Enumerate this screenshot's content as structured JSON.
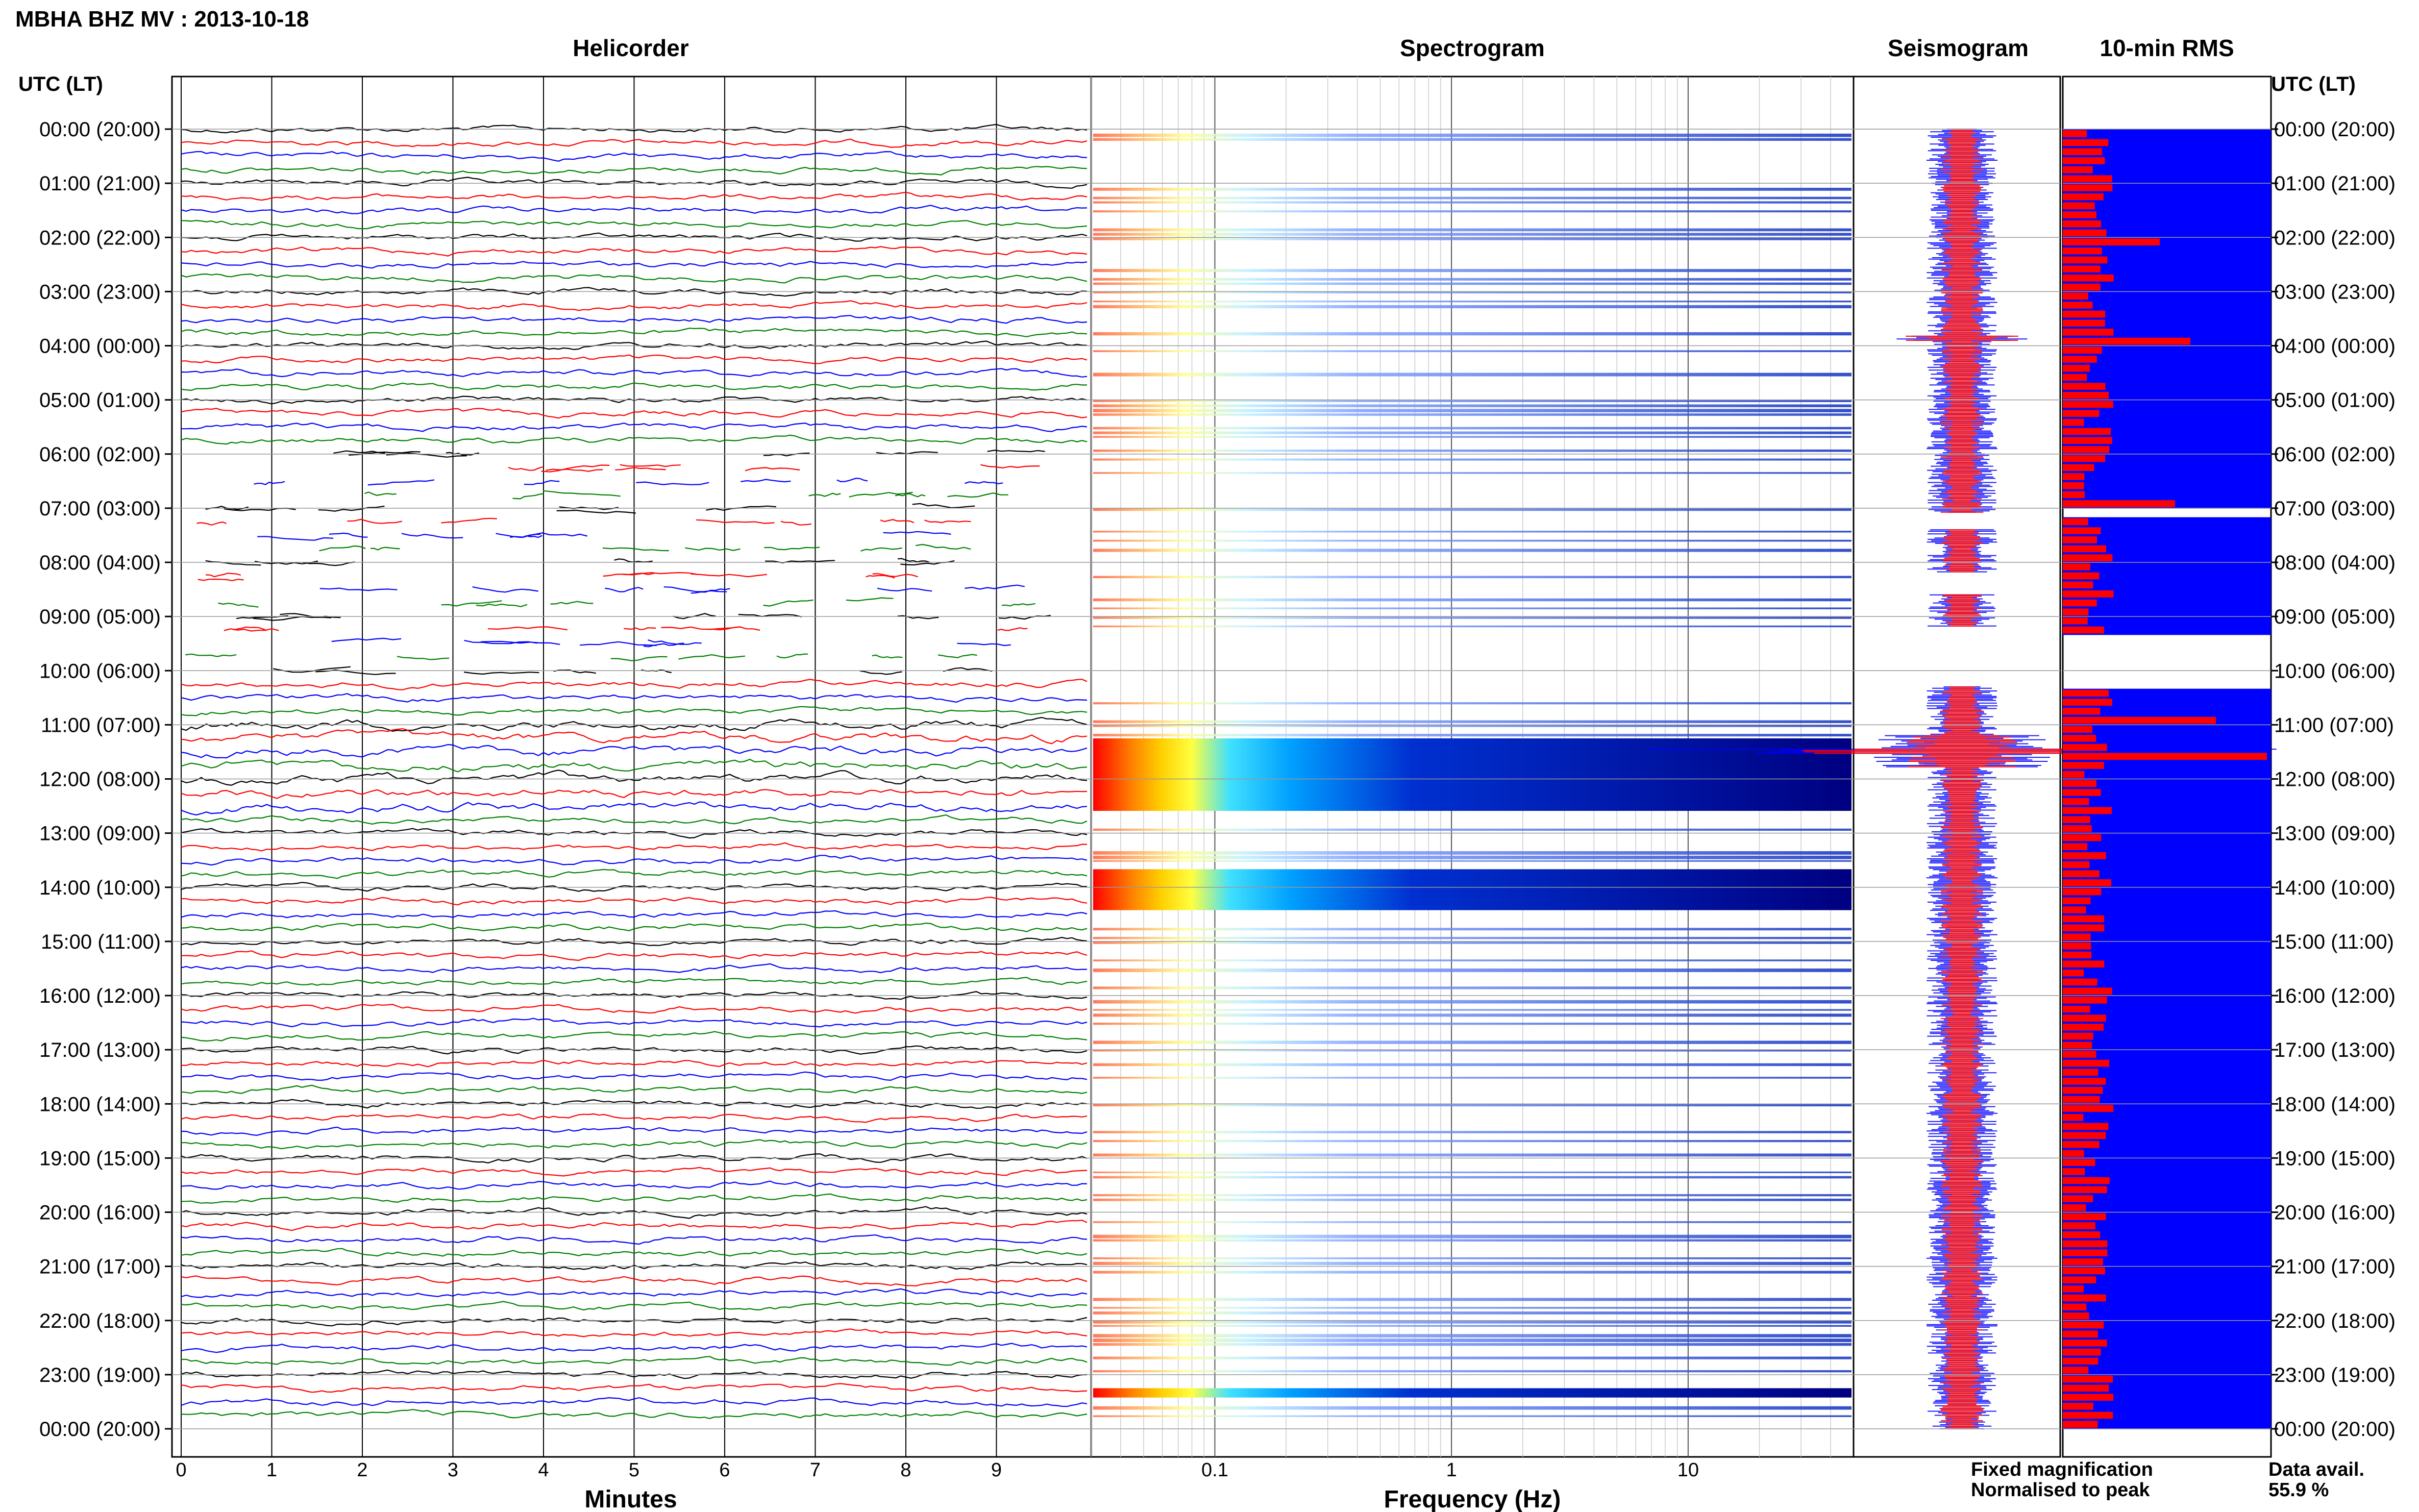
{
  "header": {
    "title": "MBHA BHZ MV : 2013-10-18",
    "axis_time_label": "UTC (LT)"
  },
  "panels": {
    "helicorder": "Helicorder",
    "spectrogram": "Spectrogram",
    "seismogram": "Seismogram",
    "rms": "10-min RMS"
  },
  "legend": {
    "fixed": "Fixed magnification",
    "normalised": "Normalised to peak",
    "fixed_color": "#0000ff",
    "normalised_color": "#ff0000"
  },
  "availability": {
    "label": "Data avail.",
    "value": "55.9 %"
  },
  "chart_data": {
    "type": "seismic-summary",
    "time_ticks": [
      "00:00 (20:00)",
      "01:00 (21:00)",
      "02:00 (22:00)",
      "03:00 (23:00)",
      "04:00 (00:00)",
      "05:00 (01:00)",
      "06:00 (02:00)",
      "07:00 (03:00)",
      "08:00 (04:00)",
      "09:00 (05:00)",
      "10:00 (06:00)",
      "11:00 (07:00)",
      "12:00 (08:00)",
      "13:00 (09:00)",
      "14:00 (10:00)",
      "15:00 (11:00)",
      "16:00 (12:00)",
      "17:00 (13:00)",
      "18:00 (14:00)",
      "19:00 (15:00)",
      "20:00 (16:00)",
      "21:00 (17:00)",
      "22:00 (18:00)",
      "23:00 (19:00)",
      "00:00 (20:00)"
    ],
    "helicorder": {
      "xlabel": "Minutes",
      "xticks": [
        "0",
        "1",
        "2",
        "3",
        "4",
        "5",
        "6",
        "7",
        "8",
        "9"
      ],
      "xlim": [
        0,
        10
      ],
      "trace_colors": [
        "#000000",
        "#ff0000",
        "#0000ff",
        "#008000"
      ]
    },
    "spectrogram": {
      "xlabel": "Frequency (Hz)",
      "xscale": "log",
      "xlim": [
        0.03,
        50
      ],
      "xticks": [
        "0.1",
        "1",
        "10"
      ],
      "active_hour_ranges": [
        [
          0,
          9.2
        ],
        [
          10.3,
          24
        ]
      ],
      "strong_rows_hours": [
        [
          11.25,
          12.55
        ],
        [
          13.65,
          14.35
        ],
        [
          23.2,
          23.4
        ]
      ]
    },
    "seismogram": {
      "fixed_color": "#0000ff",
      "normalised_color": "#ff0000"
    },
    "rms": {
      "bar_color": "#ff0000",
      "fill_color": "#0000ff",
      "gaps_hours": [
        [
          7.0,
          7.2
        ],
        [
          9.3,
          10.3
        ]
      ]
    }
  }
}
